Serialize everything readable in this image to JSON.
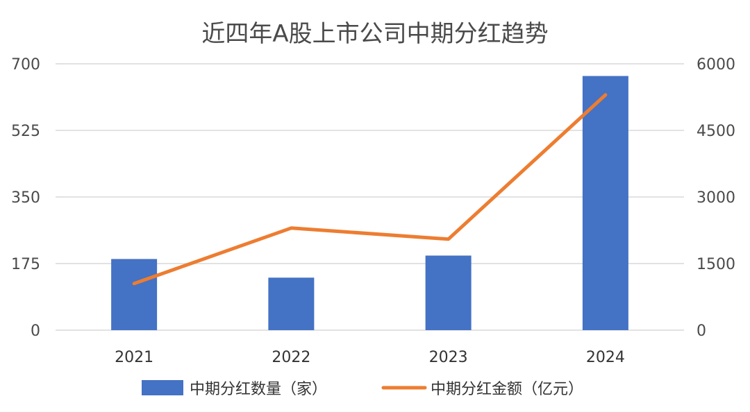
{
  "chart_data": {
    "type": "bar",
    "title": "近四年A股上市公司中期分红趋势",
    "categories": [
      "2021",
      "2022",
      "2023",
      "2024"
    ],
    "series": [
      {
        "name": "中期分红数量（家）",
        "type": "bar",
        "axis": "left",
        "color": "#4472C4",
        "values": [
          187,
          138,
          196,
          668
        ]
      },
      {
        "name": "中期分红金额（亿元）",
        "type": "line",
        "axis": "right",
        "color": "#ED7D31",
        "values": [
          1050,
          2300,
          2050,
          5300
        ]
      }
    ],
    "y_left": {
      "ticks": [
        "0",
        "175",
        "350",
        "525",
        "700"
      ],
      "ylim": [
        0,
        700
      ]
    },
    "y_right": {
      "ticks": [
        "0",
        "1500",
        "3000",
        "4500",
        "6000"
      ],
      "ylim": [
        0,
        6000
      ]
    },
    "grid": true,
    "legend": "bottom"
  }
}
